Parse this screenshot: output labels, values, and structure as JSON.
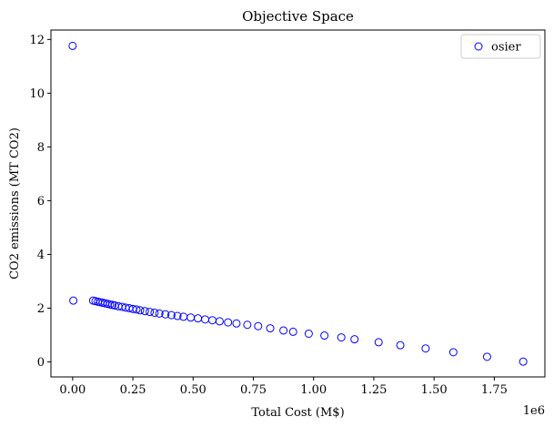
{
  "chart_data": {
    "type": "scatter",
    "title": "Objective Space",
    "xlabel": "Total Cost (M$)",
    "ylabel": "CO2 emissions (MT CO2)",
    "x_offset_text": "1e6",
    "xlim": [
      -0.09,
      1.96
    ],
    "ylim": [
      -0.56,
      12.35
    ],
    "x_ticks": [
      0.0,
      0.25,
      0.5,
      0.75,
      1.0,
      1.25,
      1.5,
      1.75
    ],
    "x_tick_labels": [
      "0.00",
      "0.25",
      "0.50",
      "0.75",
      "1.00",
      "1.25",
      "1.50",
      "1.75"
    ],
    "y_ticks": [
      0,
      2,
      4,
      6,
      8,
      10,
      12
    ],
    "y_tick_labels": [
      "0",
      "2",
      "4",
      "6",
      "8",
      "10",
      "12"
    ],
    "grid": false,
    "legend_position": "top-right",
    "marker_color": "#0000ff",
    "series": [
      {
        "name": "osier",
        "points": [
          [
            0.0,
            11.76
          ],
          [
            0.003,
            2.28
          ],
          [
            0.085,
            2.28
          ],
          [
            0.095,
            2.26
          ],
          [
            0.105,
            2.24
          ],
          [
            0.115,
            2.22
          ],
          [
            0.125,
            2.2
          ],
          [
            0.135,
            2.18
          ],
          [
            0.145,
            2.16
          ],
          [
            0.155,
            2.14
          ],
          [
            0.165,
            2.12
          ],
          [
            0.175,
            2.1
          ],
          [
            0.19,
            2.07
          ],
          [
            0.205,
            2.05
          ],
          [
            0.22,
            2.02
          ],
          [
            0.235,
            2.0
          ],
          [
            0.25,
            1.97
          ],
          [
            0.265,
            1.95
          ],
          [
            0.28,
            1.92
          ],
          [
            0.3,
            1.89
          ],
          [
            0.32,
            1.86
          ],
          [
            0.34,
            1.83
          ],
          [
            0.36,
            1.8
          ],
          [
            0.385,
            1.77
          ],
          [
            0.41,
            1.74
          ],
          [
            0.435,
            1.71
          ],
          [
            0.46,
            1.68
          ],
          [
            0.49,
            1.65
          ],
          [
            0.52,
            1.62
          ],
          [
            0.55,
            1.58
          ],
          [
            0.58,
            1.55
          ],
          [
            0.61,
            1.51
          ],
          [
            0.645,
            1.47
          ],
          [
            0.68,
            1.43
          ],
          [
            0.725,
            1.38
          ],
          [
            0.77,
            1.33
          ],
          [
            0.82,
            1.25
          ],
          [
            0.875,
            1.17
          ],
          [
            0.915,
            1.12
          ],
          [
            0.98,
            1.05
          ],
          [
            1.045,
            0.98
          ],
          [
            1.115,
            0.91
          ],
          [
            1.17,
            0.84
          ],
          [
            1.27,
            0.73
          ],
          [
            1.36,
            0.62
          ],
          [
            1.465,
            0.5
          ],
          [
            1.58,
            0.36
          ],
          [
            1.72,
            0.19
          ],
          [
            1.87,
            0.01
          ]
        ]
      }
    ]
  }
}
